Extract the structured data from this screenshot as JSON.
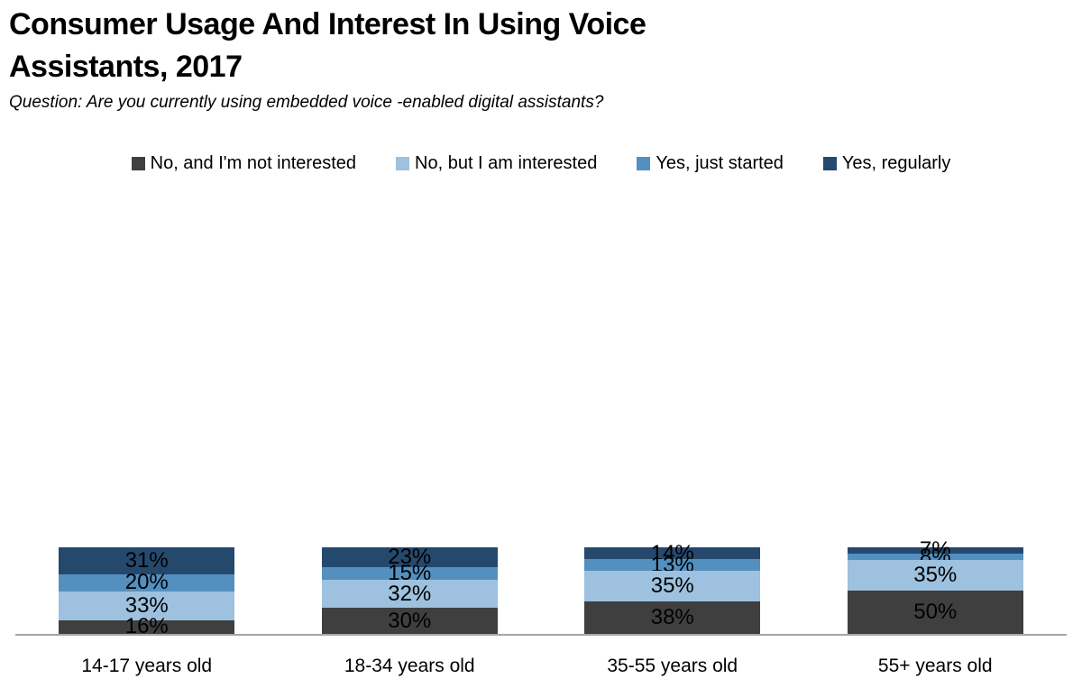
{
  "header": {
    "title_line1": "Consumer Usage And Interest In Using Voice",
    "title_line2": "Assistants, 2017",
    "subtitle": "Question: Are you currently using embedded voice -enabled digital assistants?"
  },
  "chart_data": {
    "type": "bar",
    "stacked": true,
    "title": "Consumer Usage And Interest In Using Voice Assistants, 2017",
    "subtitle": "Question: Are you currently using embedded voice -enabled digital assistants?",
    "categories": [
      "14-17 years old",
      "18-34 years old",
      "35-55 years old",
      "55+ years old"
    ],
    "series": [
      {
        "name": "No, and I'm not interested",
        "color": "#3f3f3f",
        "values": [
          16,
          30,
          38,
          50
        ]
      },
      {
        "name": "No, but I am interested",
        "color": "#9dc1de",
        "values": [
          33,
          32,
          35,
          35
        ]
      },
      {
        "name": "Yes, just started",
        "color": "#5390c0",
        "values": [
          20,
          15,
          13,
          8
        ]
      },
      {
        "name": "Yes, regularly",
        "color": "#25496d",
        "values": [
          31,
          23,
          14,
          7
        ]
      }
    ],
    "value_label_suffix": "%",
    "ylim": [
      0,
      100
    ],
    "grid": false,
    "legend_position": "top",
    "axis_line_color": "#a6a6a6",
    "label_color": "#000000"
  }
}
